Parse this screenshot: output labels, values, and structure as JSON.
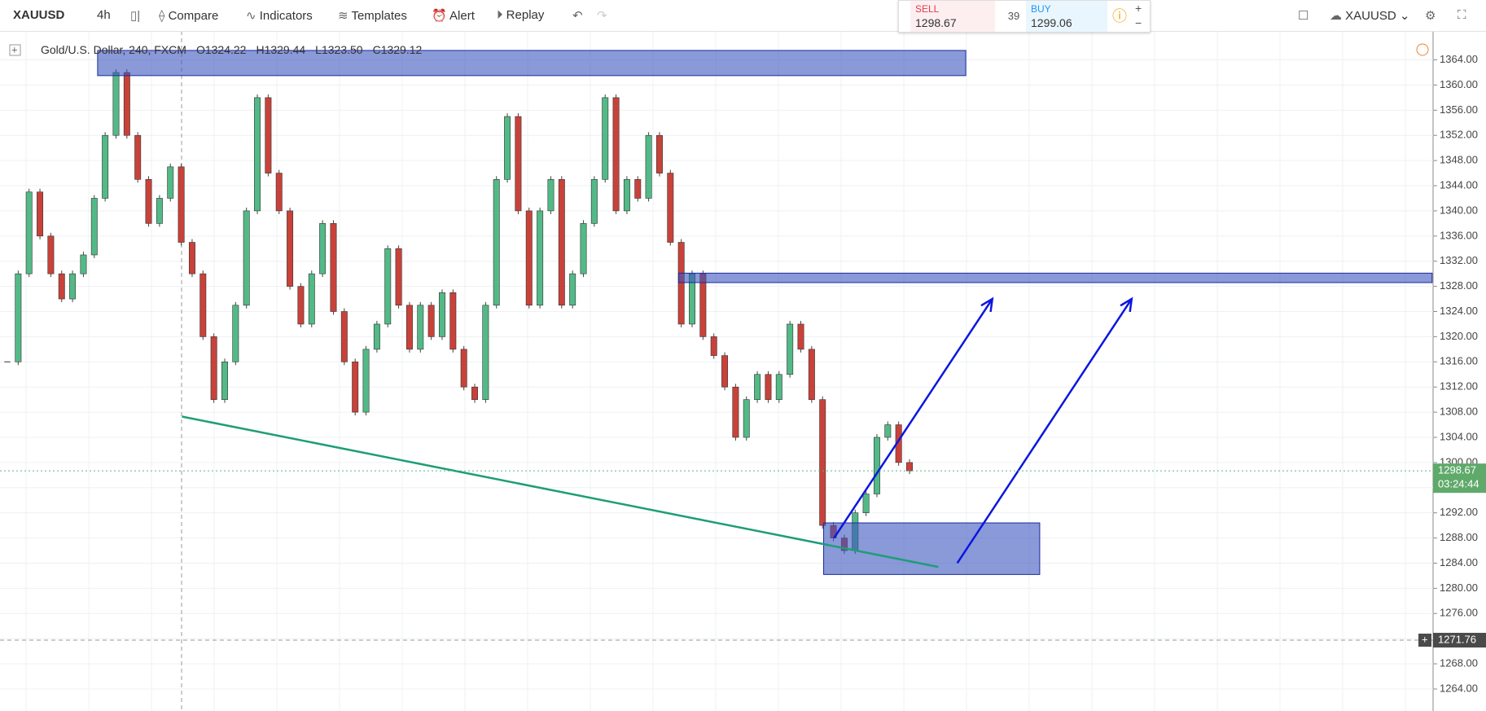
{
  "toolbar": {
    "symbol": "XAUUSD",
    "interval": "4h",
    "compare": "Compare",
    "indicators": "Indicators",
    "templates": "Templates",
    "alert": "Alert",
    "replay": "Replay"
  },
  "trade": {
    "sell_label": "SELL",
    "sell_price": "1298.67",
    "spread": "39",
    "buy_label": "BUY",
    "buy_price": "1299.06"
  },
  "right_toolbar": {
    "symbol": "XAUUSD"
  },
  "legend": {
    "title": "Gold/U.S. Dollar, 240, FXCM",
    "open": "O1324.22",
    "high": "H1329.44",
    "low": "L1323.50",
    "close": "C1329.12"
  },
  "price_axis": {
    "ylim": [
      1260.5,
      1368.6
    ],
    "yticks": [
      {
        "value": 1264,
        "label": "1264.00"
      },
      {
        "value": 1268,
        "label": "1268.00"
      },
      {
        "value": 1272,
        "label": "1272.00"
      },
      {
        "value": 1276,
        "label": "1276.00"
      },
      {
        "value": 1280,
        "label": "1280.00"
      },
      {
        "value": 1284,
        "label": "1284.00"
      },
      {
        "value": 1288,
        "label": "1288.00"
      },
      {
        "value": 1292,
        "label": "1292.00"
      },
      {
        "value": 1296,
        "label": "1296.00"
      },
      {
        "value": 1300,
        "label": "1300.00"
      },
      {
        "value": 1304,
        "label": "1304.00"
      },
      {
        "value": 1308,
        "label": "1308.00"
      },
      {
        "value": 1312,
        "label": "1312.00"
      },
      {
        "value": 1316,
        "label": "1316.00"
      },
      {
        "value": 1320,
        "label": "1320.00"
      },
      {
        "value": 1324,
        "label": "1324.00"
      },
      {
        "value": 1328,
        "label": "1328.00"
      },
      {
        "value": 1332,
        "label": "1332.00"
      },
      {
        "value": 1336,
        "label": "1336.00"
      },
      {
        "value": 1340,
        "label": "1340.00"
      },
      {
        "value": 1344,
        "label": "1344.00"
      },
      {
        "value": 1348,
        "label": "1348.00"
      },
      {
        "value": 1352,
        "label": "1352.00"
      },
      {
        "value": 1356,
        "label": "1356.00"
      },
      {
        "value": 1360,
        "label": "1360.00"
      },
      {
        "value": 1364,
        "label": "1364.00"
      }
    ],
    "last_price": {
      "value": 1298.67,
      "label": "1298.67"
    },
    "countdown": "03:24:44",
    "crosshair": {
      "value": 1271.76,
      "label": "1271.76"
    }
  },
  "closes": [
    1316,
    1330,
    1343,
    1336,
    1330,
    1326,
    1330,
    1333,
    1342,
    1352,
    1362,
    1352,
    1345,
    1338,
    1342,
    1347,
    1335,
    1330,
    1320,
    1310,
    1316,
    1325,
    1340,
    1358,
    1346,
    1340,
    1328,
    1322,
    1330,
    1338,
    1324,
    1316,
    1308,
    1318,
    1322,
    1334,
    1325,
    1318,
    1325,
    1320,
    1327,
    1318,
    1312,
    1310,
    1325,
    1345,
    1355,
    1340,
    1325,
    1340,
    1345,
    1325,
    1330,
    1338,
    1345,
    1358,
    1340,
    1345,
    1342,
    1352,
    1346,
    1335,
    1322,
    1330,
    1320,
    1317,
    1312,
    1304,
    1310,
    1314,
    1310,
    1314,
    1322,
    1318,
    1310,
    1290,
    1288,
    1286,
    1292,
    1295,
    1304,
    1306,
    1300,
    1298.67
  ],
  "drawings": {
    "top_zone": [
      1365.5,
      1361.5
    ],
    "mid_zone": [
      1330.1,
      1328.6
    ],
    "bottom_zone": [
      1290.4,
      1282.2
    ],
    "trendline": [
      1307.3,
      1283.4
    ],
    "arrow_1": [
      1288,
      1326
    ],
    "arrow_2": [
      1284,
      1326
    ]
  }
}
